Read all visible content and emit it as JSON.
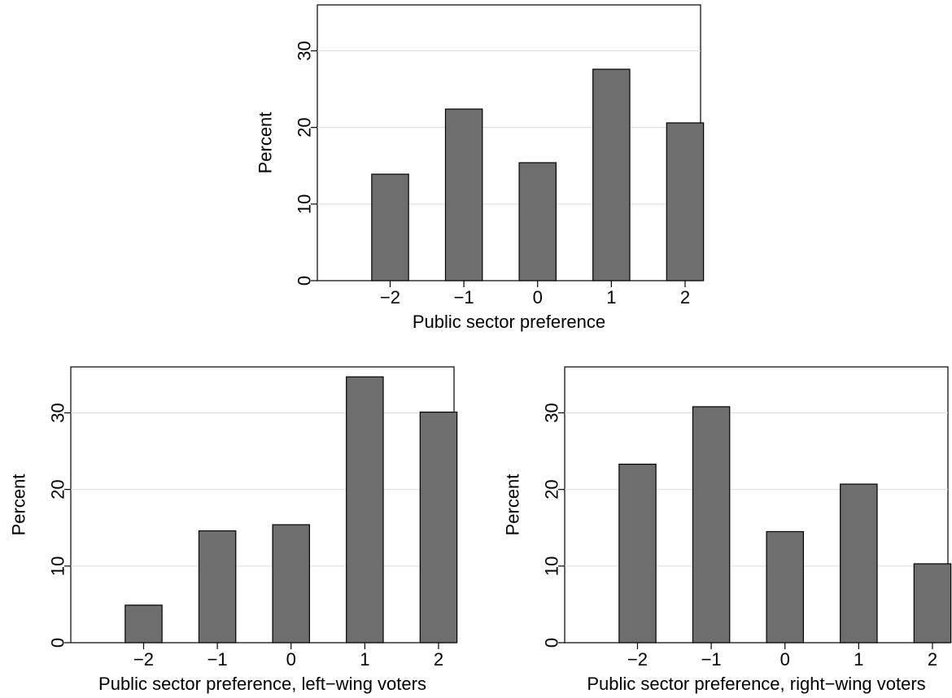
{
  "chart_data": [
    {
      "type": "bar",
      "xlabel": "Public sector preference",
      "ylabel": "Percent",
      "categories": [
        "−2",
        "−1",
        "0",
        "1",
        "2"
      ],
      "values": [
        13.9,
        22.4,
        15.4,
        27.6,
        20.6
      ],
      "ylim": [
        0,
        36
      ],
      "yticks": [
        "0",
        "10",
        "20",
        "30"
      ],
      "grid": true,
      "bar_color": "#6e6e6e"
    },
    {
      "type": "bar",
      "xlabel": "Public sector preference, left−wing voters",
      "ylabel": "Percent",
      "categories": [
        "−2",
        "−1",
        "0",
        "1",
        "2"
      ],
      "values": [
        4.9,
        14.6,
        15.4,
        34.7,
        30.1
      ],
      "ylim": [
        0,
        36
      ],
      "yticks": [
        "0",
        "10",
        "20",
        "30"
      ],
      "grid": true,
      "bar_color": "#6e6e6e"
    },
    {
      "type": "bar",
      "xlabel": "Public sector preference, right−wing voters",
      "ylabel": "Percent",
      "categories": [
        "−2",
        "−1",
        "0",
        "1",
        "2"
      ],
      "values": [
        23.3,
        30.8,
        14.5,
        20.7,
        10.3
      ],
      "ylim": [
        0,
        36
      ],
      "yticks": [
        "0",
        "10",
        "20",
        "30"
      ],
      "grid": true,
      "bar_color": "#6e6e6e"
    }
  ]
}
